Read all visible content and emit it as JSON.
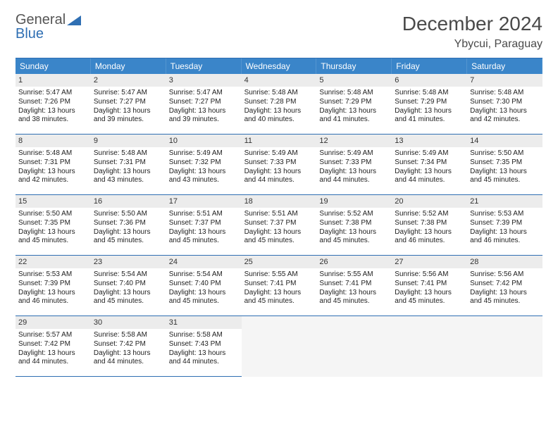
{
  "brand": {
    "word1": "General",
    "word2": "Blue",
    "color_gray": "#6a6a6a",
    "color_blue": "#2f6fb3"
  },
  "header": {
    "title": "December 2024",
    "location": "Ybycui, Paraguay"
  },
  "colors": {
    "header_bg": "#3a85c9",
    "header_fg": "#ffffff",
    "rule": "#2f6fb3",
    "daynum_bg": "#ececec",
    "cell_fg": "#222222",
    "empty_bg": "#f5f5f5"
  },
  "weekdays": [
    "Sunday",
    "Monday",
    "Tuesday",
    "Wednesday",
    "Thursday",
    "Friday",
    "Saturday"
  ],
  "start_offset": 0,
  "days": [
    {
      "n": 1,
      "sunrise": "5:47 AM",
      "sunset": "7:26 PM",
      "daylight": "13 hours and 38 minutes."
    },
    {
      "n": 2,
      "sunrise": "5:47 AM",
      "sunset": "7:27 PM",
      "daylight": "13 hours and 39 minutes."
    },
    {
      "n": 3,
      "sunrise": "5:47 AM",
      "sunset": "7:27 PM",
      "daylight": "13 hours and 39 minutes."
    },
    {
      "n": 4,
      "sunrise": "5:48 AM",
      "sunset": "7:28 PM",
      "daylight": "13 hours and 40 minutes."
    },
    {
      "n": 5,
      "sunrise": "5:48 AM",
      "sunset": "7:29 PM",
      "daylight": "13 hours and 41 minutes."
    },
    {
      "n": 6,
      "sunrise": "5:48 AM",
      "sunset": "7:29 PM",
      "daylight": "13 hours and 41 minutes."
    },
    {
      "n": 7,
      "sunrise": "5:48 AM",
      "sunset": "7:30 PM",
      "daylight": "13 hours and 42 minutes."
    },
    {
      "n": 8,
      "sunrise": "5:48 AM",
      "sunset": "7:31 PM",
      "daylight": "13 hours and 42 minutes."
    },
    {
      "n": 9,
      "sunrise": "5:48 AM",
      "sunset": "7:31 PM",
      "daylight": "13 hours and 43 minutes."
    },
    {
      "n": 10,
      "sunrise": "5:49 AM",
      "sunset": "7:32 PM",
      "daylight": "13 hours and 43 minutes."
    },
    {
      "n": 11,
      "sunrise": "5:49 AM",
      "sunset": "7:33 PM",
      "daylight": "13 hours and 44 minutes."
    },
    {
      "n": 12,
      "sunrise": "5:49 AM",
      "sunset": "7:33 PM",
      "daylight": "13 hours and 44 minutes."
    },
    {
      "n": 13,
      "sunrise": "5:49 AM",
      "sunset": "7:34 PM",
      "daylight": "13 hours and 44 minutes."
    },
    {
      "n": 14,
      "sunrise": "5:50 AM",
      "sunset": "7:35 PM",
      "daylight": "13 hours and 45 minutes."
    },
    {
      "n": 15,
      "sunrise": "5:50 AM",
      "sunset": "7:35 PM",
      "daylight": "13 hours and 45 minutes."
    },
    {
      "n": 16,
      "sunrise": "5:50 AM",
      "sunset": "7:36 PM",
      "daylight": "13 hours and 45 minutes."
    },
    {
      "n": 17,
      "sunrise": "5:51 AM",
      "sunset": "7:37 PM",
      "daylight": "13 hours and 45 minutes."
    },
    {
      "n": 18,
      "sunrise": "5:51 AM",
      "sunset": "7:37 PM",
      "daylight": "13 hours and 45 minutes."
    },
    {
      "n": 19,
      "sunrise": "5:52 AM",
      "sunset": "7:38 PM",
      "daylight": "13 hours and 45 minutes."
    },
    {
      "n": 20,
      "sunrise": "5:52 AM",
      "sunset": "7:38 PM",
      "daylight": "13 hours and 46 minutes."
    },
    {
      "n": 21,
      "sunrise": "5:53 AM",
      "sunset": "7:39 PM",
      "daylight": "13 hours and 46 minutes."
    },
    {
      "n": 22,
      "sunrise": "5:53 AM",
      "sunset": "7:39 PM",
      "daylight": "13 hours and 46 minutes."
    },
    {
      "n": 23,
      "sunrise": "5:54 AM",
      "sunset": "7:40 PM",
      "daylight": "13 hours and 45 minutes."
    },
    {
      "n": 24,
      "sunrise": "5:54 AM",
      "sunset": "7:40 PM",
      "daylight": "13 hours and 45 minutes."
    },
    {
      "n": 25,
      "sunrise": "5:55 AM",
      "sunset": "7:41 PM",
      "daylight": "13 hours and 45 minutes."
    },
    {
      "n": 26,
      "sunrise": "5:55 AM",
      "sunset": "7:41 PM",
      "daylight": "13 hours and 45 minutes."
    },
    {
      "n": 27,
      "sunrise": "5:56 AM",
      "sunset": "7:41 PM",
      "daylight": "13 hours and 45 minutes."
    },
    {
      "n": 28,
      "sunrise": "5:56 AM",
      "sunset": "7:42 PM",
      "daylight": "13 hours and 45 minutes."
    },
    {
      "n": 29,
      "sunrise": "5:57 AM",
      "sunset": "7:42 PM",
      "daylight": "13 hours and 44 minutes."
    },
    {
      "n": 30,
      "sunrise": "5:58 AM",
      "sunset": "7:42 PM",
      "daylight": "13 hours and 44 minutes."
    },
    {
      "n": 31,
      "sunrise": "5:58 AM",
      "sunset": "7:43 PM",
      "daylight": "13 hours and 44 minutes."
    }
  ],
  "labels": {
    "sunrise": "Sunrise:",
    "sunset": "Sunset:",
    "daylight": "Daylight:"
  }
}
